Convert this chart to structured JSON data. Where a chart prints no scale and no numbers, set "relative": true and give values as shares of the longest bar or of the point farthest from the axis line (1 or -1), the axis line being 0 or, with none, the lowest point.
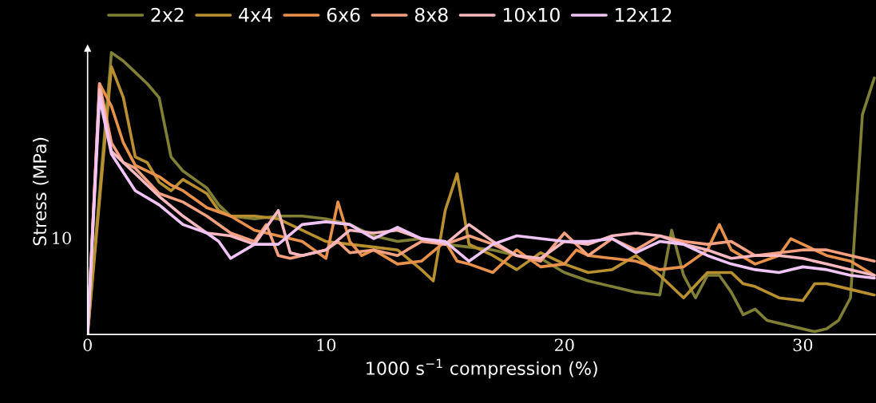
{
  "chart_data": {
    "type": "line",
    "relative": true,
    "xlabel": "1000 s$^{−1}$ compression (%)",
    "ylabel": "Stress (MPa)",
    "xlim": [
      0,
      33.07
    ],
    "xticks": [
      0,
      10,
      20,
      30
    ],
    "grid": false,
    "legend": "top",
    "marker": "none",
    "line_style": "solid",
    "annotations": [
      {
        "text": "10",
        "x": 0,
        "y": 0.337
      }
    ],
    "series": [
      {
        "name": "2x2",
        "color": "#7f7f35",
        "x": [
          0,
          1,
          1.5,
          2,
          2.5,
          3,
          3.5,
          4,
          5,
          5.5,
          6,
          7,
          8,
          9,
          10,
          11,
          12,
          13,
          14,
          15,
          16,
          17,
          18,
          19,
          20,
          21,
          22,
          23,
          24,
          24.5,
          25,
          25.5,
          26,
          26.5,
          27,
          27.5,
          28,
          28.5,
          29,
          29.5,
          30,
          30.5,
          31,
          31.5,
          32,
          32.5,
          33
        ],
        "values": [
          0,
          1.0,
          0.97,
          0.93,
          0.89,
          0.84,
          0.63,
          0.58,
          0.52,
          0.46,
          0.42,
          0.41,
          0.42,
          0.42,
          0.41,
          0.39,
          0.35,
          0.33,
          0.34,
          0.32,
          0.31,
          0.3,
          0.28,
          0.27,
          0.22,
          0.19,
          0.17,
          0.15,
          0.14,
          0.37,
          0.21,
          0.13,
          0.21,
          0.21,
          0.15,
          0.07,
          0.09,
          0.05,
          null,
          null,
          null,
          0.01,
          0.02,
          0.05,
          0.13,
          0.78,
          0.91
        ]
      },
      {
        "name": "4x4",
        "color": "#b8902f",
        "x": [
          0,
          1,
          1.5,
          2,
          2.5,
          3,
          3.5,
          4,
          5,
          5.5,
          6,
          7,
          8,
          9,
          10,
          11,
          12,
          13,
          14,
          14.5,
          15,
          15.5,
          16,
          17,
          18,
          19,
          20,
          21,
          22,
          23,
          24,
          25,
          26,
          27,
          27.5,
          28,
          29,
          30,
          30.5,
          31,
          32,
          33
        ],
        "values": [
          0,
          0.95,
          0.84,
          0.63,
          0.61,
          0.54,
          0.51,
          0.55,
          0.5,
          0.44,
          0.42,
          0.42,
          0.41,
          0.37,
          0.33,
          0.32,
          0.31,
          0.3,
          0.23,
          0.19,
          0.44,
          0.57,
          0.32,
          0.28,
          0.23,
          0.29,
          0.25,
          0.22,
          0.23,
          0.28,
          0.21,
          0.13,
          0.22,
          0.22,
          0.18,
          0.17,
          0.13,
          0.12,
          0.18,
          0.18,
          0.16,
          0.14
        ]
      },
      {
        "name": "6x6",
        "color": "#e8914a",
        "x": [
          0,
          0.5,
          1,
          1.5,
          2,
          2.5,
          3,
          3.5,
          4,
          5,
          6,
          7,
          8,
          9,
          10,
          10.5,
          11,
          11.5,
          12,
          13,
          14,
          15,
          15.5,
          16,
          17,
          18,
          19,
          20,
          20.5,
          21,
          22,
          23,
          24,
          25,
          26,
          26.5,
          27,
          28,
          29,
          29.5,
          30,
          31,
          32,
          33
        ],
        "values": [
          0,
          0.89,
          0.81,
          0.68,
          0.6,
          0.58,
          0.56,
          0.53,
          0.51,
          0.45,
          0.42,
          0.37,
          0.35,
          0.33,
          0.27,
          0.47,
          0.33,
          0.28,
          0.3,
          0.25,
          0.26,
          0.33,
          0.26,
          0.25,
          0.22,
          0.3,
          0.24,
          0.25,
          0.3,
          0.28,
          0.27,
          0.26,
          0.23,
          0.24,
          0.3,
          0.39,
          0.3,
          0.25,
          0.28,
          0.34,
          0.32,
          0.28,
          0.26,
          0.21
        ]
      },
      {
        "name": "8x8",
        "color": "#f5a07f",
        "x": [
          0,
          0.5,
          1,
          1.5,
          2,
          3,
          4,
          5,
          6,
          7,
          7.5,
          8,
          8.5,
          9,
          10,
          10.5,
          11,
          12,
          13,
          14,
          15,
          16,
          17,
          18,
          19,
          20,
          21,
          22,
          23,
          24,
          25,
          26,
          27,
          28,
          29,
          30,
          31,
          32,
          33
        ],
        "values": [
          0,
          0.89,
          0.68,
          0.61,
          0.59,
          0.5,
          0.47,
          0.42,
          0.36,
          0.33,
          0.39,
          0.28,
          0.27,
          0.28,
          0.3,
          0.33,
          0.29,
          0.3,
          0.28,
          0.33,
          0.32,
          0.35,
          0.32,
          0.28,
          0.26,
          0.36,
          0.28,
          0.34,
          0.3,
          0.35,
          0.33,
          0.32,
          0.33,
          0.28,
          0.29,
          0.3,
          0.3,
          0.28,
          0.26
        ]
      },
      {
        "name": "10x10",
        "color": "#f7b8c0",
        "x": [
          0,
          0.5,
          1,
          2,
          3,
          4,
          5,
          6,
          7,
          8,
          8.5,
          9,
          10,
          11,
          12,
          13,
          14,
          15,
          16,
          17,
          18,
          19,
          20,
          21,
          22,
          23,
          24,
          25,
          26,
          27,
          28,
          29,
          30,
          31,
          32,
          33
        ],
        "values": [
          0,
          0.87,
          0.65,
          0.57,
          0.49,
          0.42,
          0.36,
          0.35,
          0.32,
          0.44,
          0.29,
          0.28,
          0.3,
          0.37,
          0.36,
          0.37,
          0.34,
          0.32,
          0.39,
          0.33,
          0.28,
          0.27,
          0.33,
          0.32,
          0.35,
          0.36,
          0.35,
          0.32,
          0.3,
          0.27,
          0.28,
          0.28,
          0.27,
          0.25,
          0.23,
          0.21
        ]
      },
      {
        "name": "12x12",
        "color": "#f0c4f5",
        "x": [
          0,
          0.5,
          1,
          2,
          3,
          4,
          5,
          5.5,
          6,
          7,
          8,
          9,
          10,
          11,
          12,
          13,
          14,
          15,
          16,
          17,
          18,
          19,
          20,
          21,
          22,
          23,
          24,
          25,
          26,
          27,
          28,
          29,
          30,
          31,
          32,
          33
        ],
        "values": [
          0,
          0.84,
          0.64,
          0.51,
          0.46,
          0.39,
          0.36,
          0.33,
          0.27,
          0.32,
          0.32,
          0.39,
          0.4,
          0.39,
          0.34,
          0.38,
          0.34,
          0.33,
          0.26,
          0.32,
          0.35,
          0.34,
          0.33,
          0.33,
          0.34,
          0.29,
          0.33,
          0.32,
          0.28,
          0.25,
          0.23,
          0.22,
          0.24,
          0.23,
          0.21,
          0.2
        ]
      }
    ]
  }
}
